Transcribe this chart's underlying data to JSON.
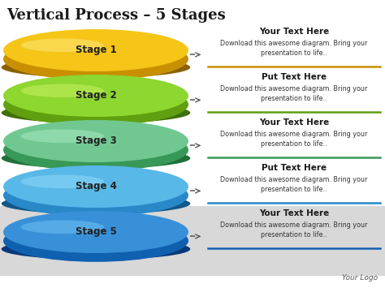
{
  "title": "Vertical Process – 5 Stages",
  "title_fontsize": 13,
  "background_color": "#ffffff",
  "stages": [
    {
      "label": "Stage 1",
      "color_top": "#f5c518",
      "color_side": "#c89000",
      "color_shine": "#fde87a",
      "color_dark": "#8a6000"
    },
    {
      "label": "Stage 2",
      "color_top": "#8ed630",
      "color_side": "#60a010",
      "color_shine": "#c8f060",
      "color_dark": "#407008"
    },
    {
      "label": "Stage 3",
      "color_top": "#70c890",
      "color_side": "#389858",
      "color_shine": "#a8e8c0",
      "color_dark": "#207038"
    },
    {
      "label": "Stage 4",
      "color_top": "#58b8e8",
      "color_side": "#2888c8",
      "color_shine": "#90d8f8",
      "color_dark": "#105888"
    },
    {
      "label": "Stage 5",
      "color_top": "#3890d8",
      "color_side": "#1060b0",
      "color_shine": "#70c0f0",
      "color_dark": "#083878"
    }
  ],
  "text_titles": [
    "Your Text Here",
    "Put Text Here",
    "Your Text Here",
    "Put Text Here",
    "Your Text Here"
  ],
  "text_body_line1": "Download this awesome diagram. Bring your",
  "text_body_line2": "presentation to life..",
  "stage5_bg": "#d8d8d8",
  "logo_text": "Your Logo",
  "arrow_color": "#555555",
  "line_colors": [
    "#c89000",
    "#60a010",
    "#389858",
    "#2888c8",
    "#1060b0"
  ]
}
